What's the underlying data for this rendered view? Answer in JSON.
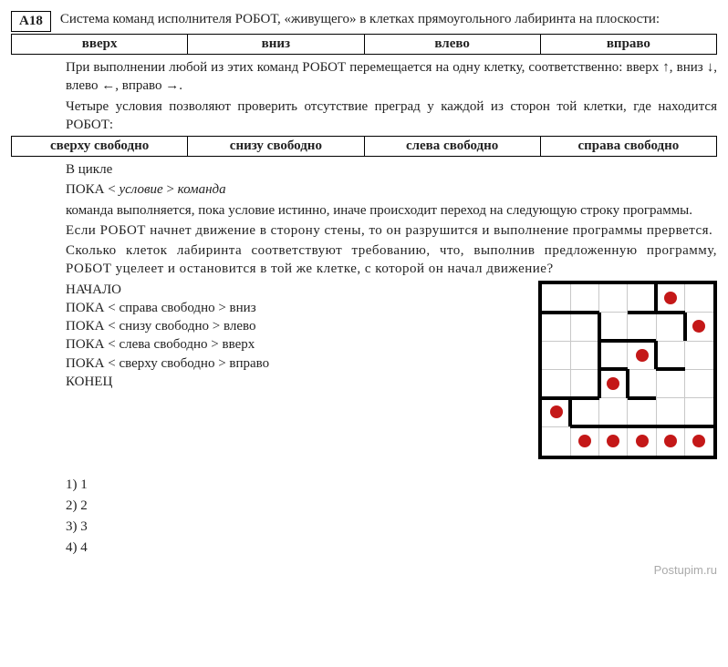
{
  "badge": "А18",
  "header": "Система команд исполнителя РОБОТ, «живущего» в клетках прямоугольного лабиринта на плоскости:",
  "cmds1": [
    "вверх",
    "вниз",
    "влево",
    "вправо"
  ],
  "para1": "При выполнении любой из этих команд РОБОТ перемещается на одну клетку, соответственно: вверх ↑, вниз ↓, влево ←, вправо →.",
  "para2": "Четыре условия позволяют проверить отсутствие преград у каждой из сторон той клетки, где находится РОБОТ:",
  "conds": [
    "сверху свободно",
    "снизу свободно",
    "слева свободно",
    "справа свободно"
  ],
  "cycle1": "В цикле",
  "cycle2a": "ПОКА < ",
  "cycle2b": "условие",
  "cycle2c": " > ",
  "cycle2d": "команда",
  "para3": "команда выполняется, пока условие истинно, иначе происходит переход на следующую строку программы.",
  "para4": "Если РОБОТ начнет движение в сторону стены, то он разрушится и выполнение программы прервется.",
  "para5": "Сколько клеток лабиринта соответствуют требованию, что, выполнив предложенную программу, РОБОТ уцелеет и остановится в той же клетке, с которой он начал движение?",
  "prog": {
    "l1": "НАЧАЛО",
    "l2": "ПОКА < справа свободно > вниз",
    "l3": "ПОКА < снизу свободно > влево",
    "l4": "ПОКА < слева свободно > вверх",
    "l5": "ПОКА < сверху свободно > вправо",
    "l6": "КОНЕЦ"
  },
  "answers": {
    "a1": "1)  1",
    "a2": "2)  2",
    "a3": "3)  3",
    "a4": "4)  4"
  },
  "watermark": "Postupim.ru",
  "maze": {
    "cell": 31.33,
    "grid_color": "#c8c8c8",
    "wall_thickness": 4,
    "dot_color": "#c41818",
    "walls_h": [
      {
        "r": 1,
        "c0": 0,
        "c1": 2
      },
      {
        "r": 1,
        "c0": 3,
        "c1": 5
      },
      {
        "r": 2,
        "c0": 2,
        "c1": 4
      },
      {
        "r": 3,
        "c0": 2,
        "c1": 3
      },
      {
        "r": 3,
        "c0": 4,
        "c1": 5
      },
      {
        "r": 4,
        "c0": 0,
        "c1": 2
      },
      {
        "r": 4,
        "c0": 3,
        "c1": 4
      },
      {
        "r": 5,
        "c0": 1,
        "c1": 6
      }
    ],
    "walls_v": [
      {
        "c": 2,
        "r0": 1,
        "r1": 4
      },
      {
        "c": 4,
        "r0": 0,
        "r1": 1
      },
      {
        "c": 4,
        "r0": 2,
        "r1": 3
      },
      {
        "c": 5,
        "r0": 1,
        "r1": 2
      },
      {
        "c": 3,
        "r0": 3,
        "r1": 4
      },
      {
        "c": 1,
        "r0": 4,
        "r1": 5
      }
    ],
    "dots": [
      {
        "r": 0,
        "c": 4
      },
      {
        "r": 1,
        "c": 5
      },
      {
        "r": 2,
        "c": 3
      },
      {
        "r": 3,
        "c": 2
      },
      {
        "r": 4,
        "c": 0
      },
      {
        "r": 5,
        "c": 1
      },
      {
        "r": 5,
        "c": 2
      },
      {
        "r": 5,
        "c": 3
      },
      {
        "r": 5,
        "c": 4
      },
      {
        "r": 5,
        "c": 5
      }
    ]
  }
}
